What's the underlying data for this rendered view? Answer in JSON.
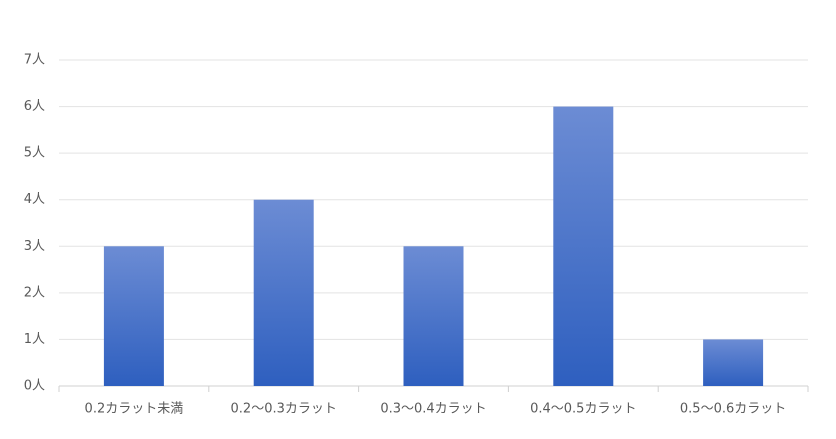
{
  "chart_data": {
    "type": "bar",
    "categories": [
      "0.2カラット未満",
      "0.2〜0.3カラット",
      "0.3〜0.4カラット",
      "0.4〜0.5カラット",
      "0.5〜0.6カラット"
    ],
    "values": [
      3,
      4,
      3,
      6,
      1
    ],
    "gradient": [
      "#6c8cd4",
      "#2e5fbf"
    ],
    "ylim": [
      0,
      7
    ],
    "yticks": [
      {
        "value": 0,
        "label": "0人"
      },
      {
        "value": 1,
        "label": "1人"
      },
      {
        "value": 2,
        "label": "2人"
      },
      {
        "value": 3,
        "label": "3人"
      },
      {
        "value": 4,
        "label": "4人"
      },
      {
        "value": 5,
        "label": "5人"
      },
      {
        "value": 6,
        "label": "6人"
      },
      {
        "value": 7,
        "label": "7人"
      }
    ],
    "grid": true
  }
}
